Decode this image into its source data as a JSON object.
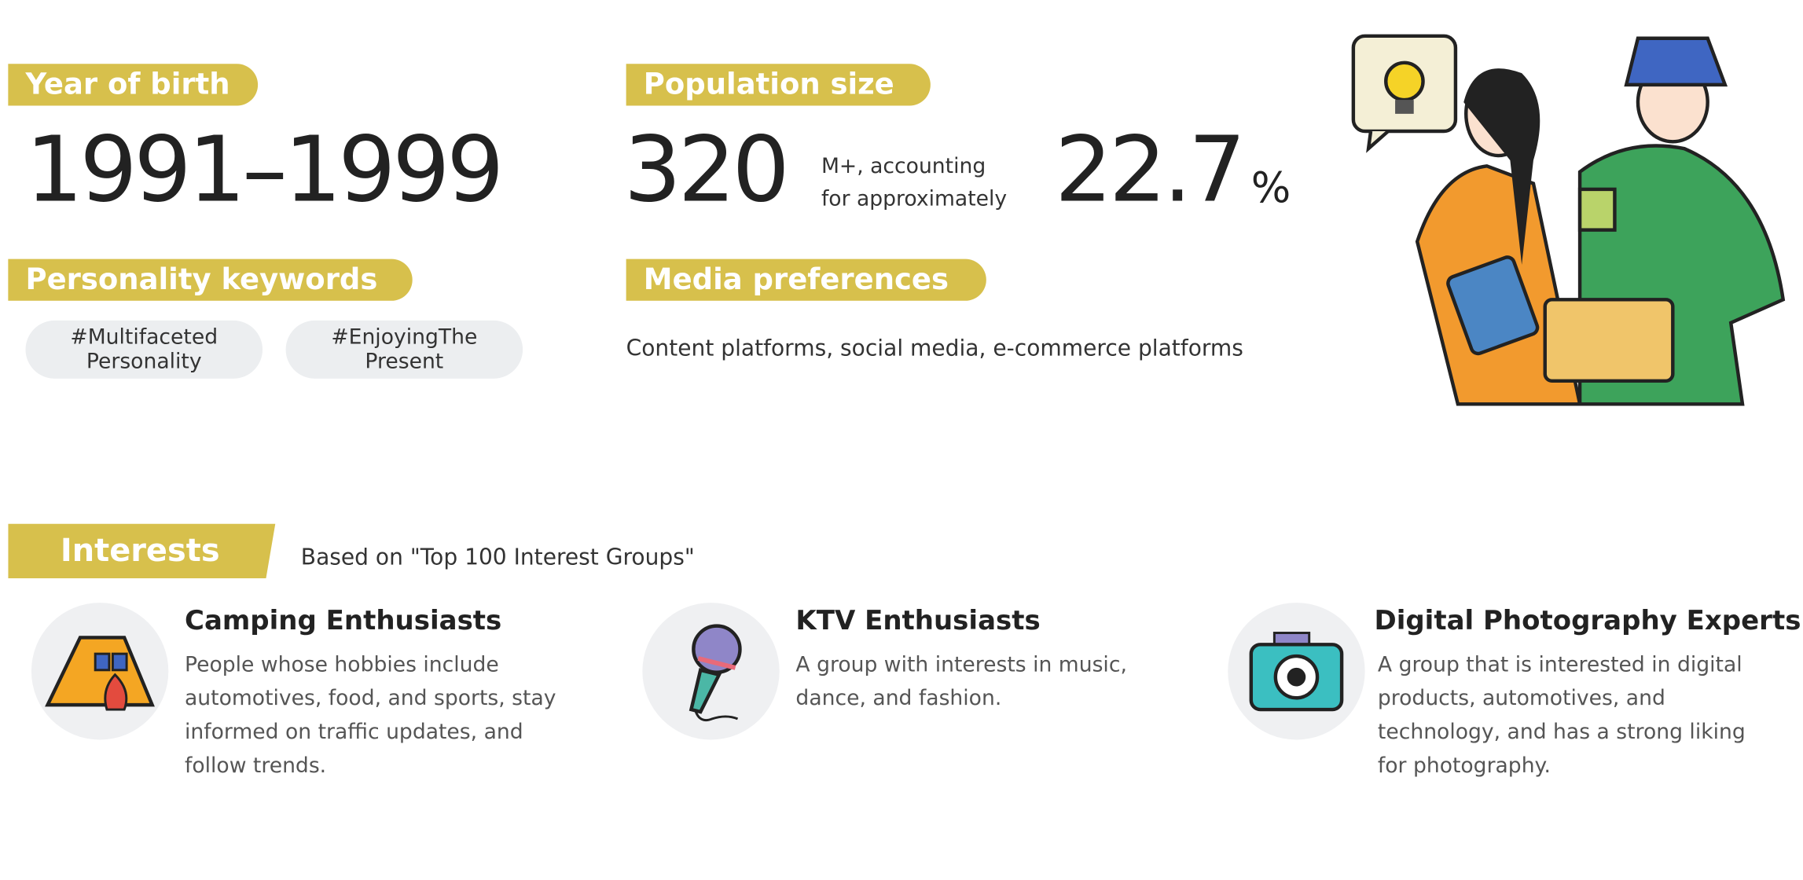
{
  "profile": {
    "year_of_birth": {
      "label": "Year of birth",
      "value": "1991–1999"
    },
    "population": {
      "label": "Population size",
      "number": "320",
      "text_line1": "M+, accounting",
      "text_line2": "for approximately",
      "percent": "22.7",
      "unit": "%"
    },
    "personality": {
      "label": "Personality keywords",
      "keywords": [
        [
          "#Multifaceted",
          "Personality"
        ],
        [
          "#EnjoyingThe",
          "Present"
        ]
      ]
    },
    "media": {
      "label": "Media preferences",
      "text": "Content platforms, social media, e-commerce platforms"
    }
  },
  "interests": {
    "label": "Interests",
    "note": "Based on \"Top 100 Interest Groups\"",
    "items": [
      {
        "title": "Camping Enthusiasts",
        "description": "People whose hobbies include automotives, food, and sports, stay informed on traffic updates, and follow trends."
      },
      {
        "title": "KTV Enthusiasts",
        "description": "A group with interests in music, dance, and fashion."
      },
      {
        "title": "Digital Photography Experts",
        "description": "A group that is interested in digital products, automotives, and technology, and has a strong liking for photography."
      }
    ]
  }
}
